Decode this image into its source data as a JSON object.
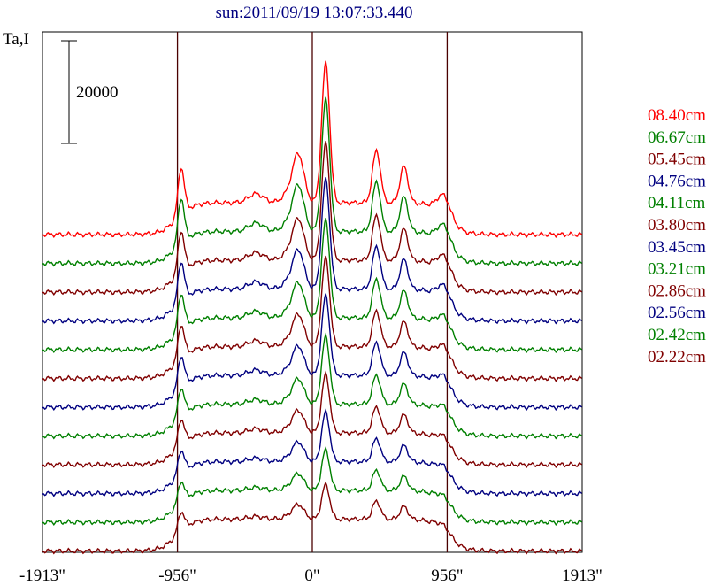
{
  "chart_data": {
    "type": "line",
    "title": "sun:2011/09/19 13:07:33.440",
    "ylabel": "Ta,I",
    "scale_bar_label": "20000",
    "x_ticks": [
      {
        "value": -1913,
        "label": "-1913\""
      },
      {
        "value": -956,
        "label": "-956\""
      },
      {
        "value": 0,
        "label": "0\""
      },
      {
        "value": 956,
        "label": "956\""
      },
      {
        "value": 1913,
        "label": "1913\""
      }
    ],
    "xlim": [
      -1913,
      1913
    ],
    "vertical_lines": [
      -956,
      0,
      956
    ],
    "grid": false,
    "legend_position": "right",
    "series": [
      {
        "name": "08.40cm",
        "color": "#ff0000",
        "amp": 1.0
      },
      {
        "name": "06.67cm",
        "color": "#008000",
        "amp": 0.95
      },
      {
        "name": "05.45cm",
        "color": "#800000",
        "amp": 0.85
      },
      {
        "name": "04.76cm",
        "color": "#000080",
        "amp": 0.8
      },
      {
        "name": "04.11cm",
        "color": "#008000",
        "amp": 0.72
      },
      {
        "name": "03.80cm",
        "color": "#800000",
        "amp": 0.66
      },
      {
        "name": "03.45cm",
        "color": "#000080",
        "amp": 0.6
      },
      {
        "name": "03.21cm",
        "color": "#008000",
        "amp": 0.52
      },
      {
        "name": "02.86cm",
        "color": "#800000",
        "amp": 0.46
      },
      {
        "name": "02.56cm",
        "color": "#000080",
        "amp": 0.4
      },
      {
        "name": "02.42cm",
        "color": "#008000",
        "amp": 0.34
      },
      {
        "name": "02.22cm",
        "color": "#800000",
        "amp": 0.3
      }
    ]
  }
}
